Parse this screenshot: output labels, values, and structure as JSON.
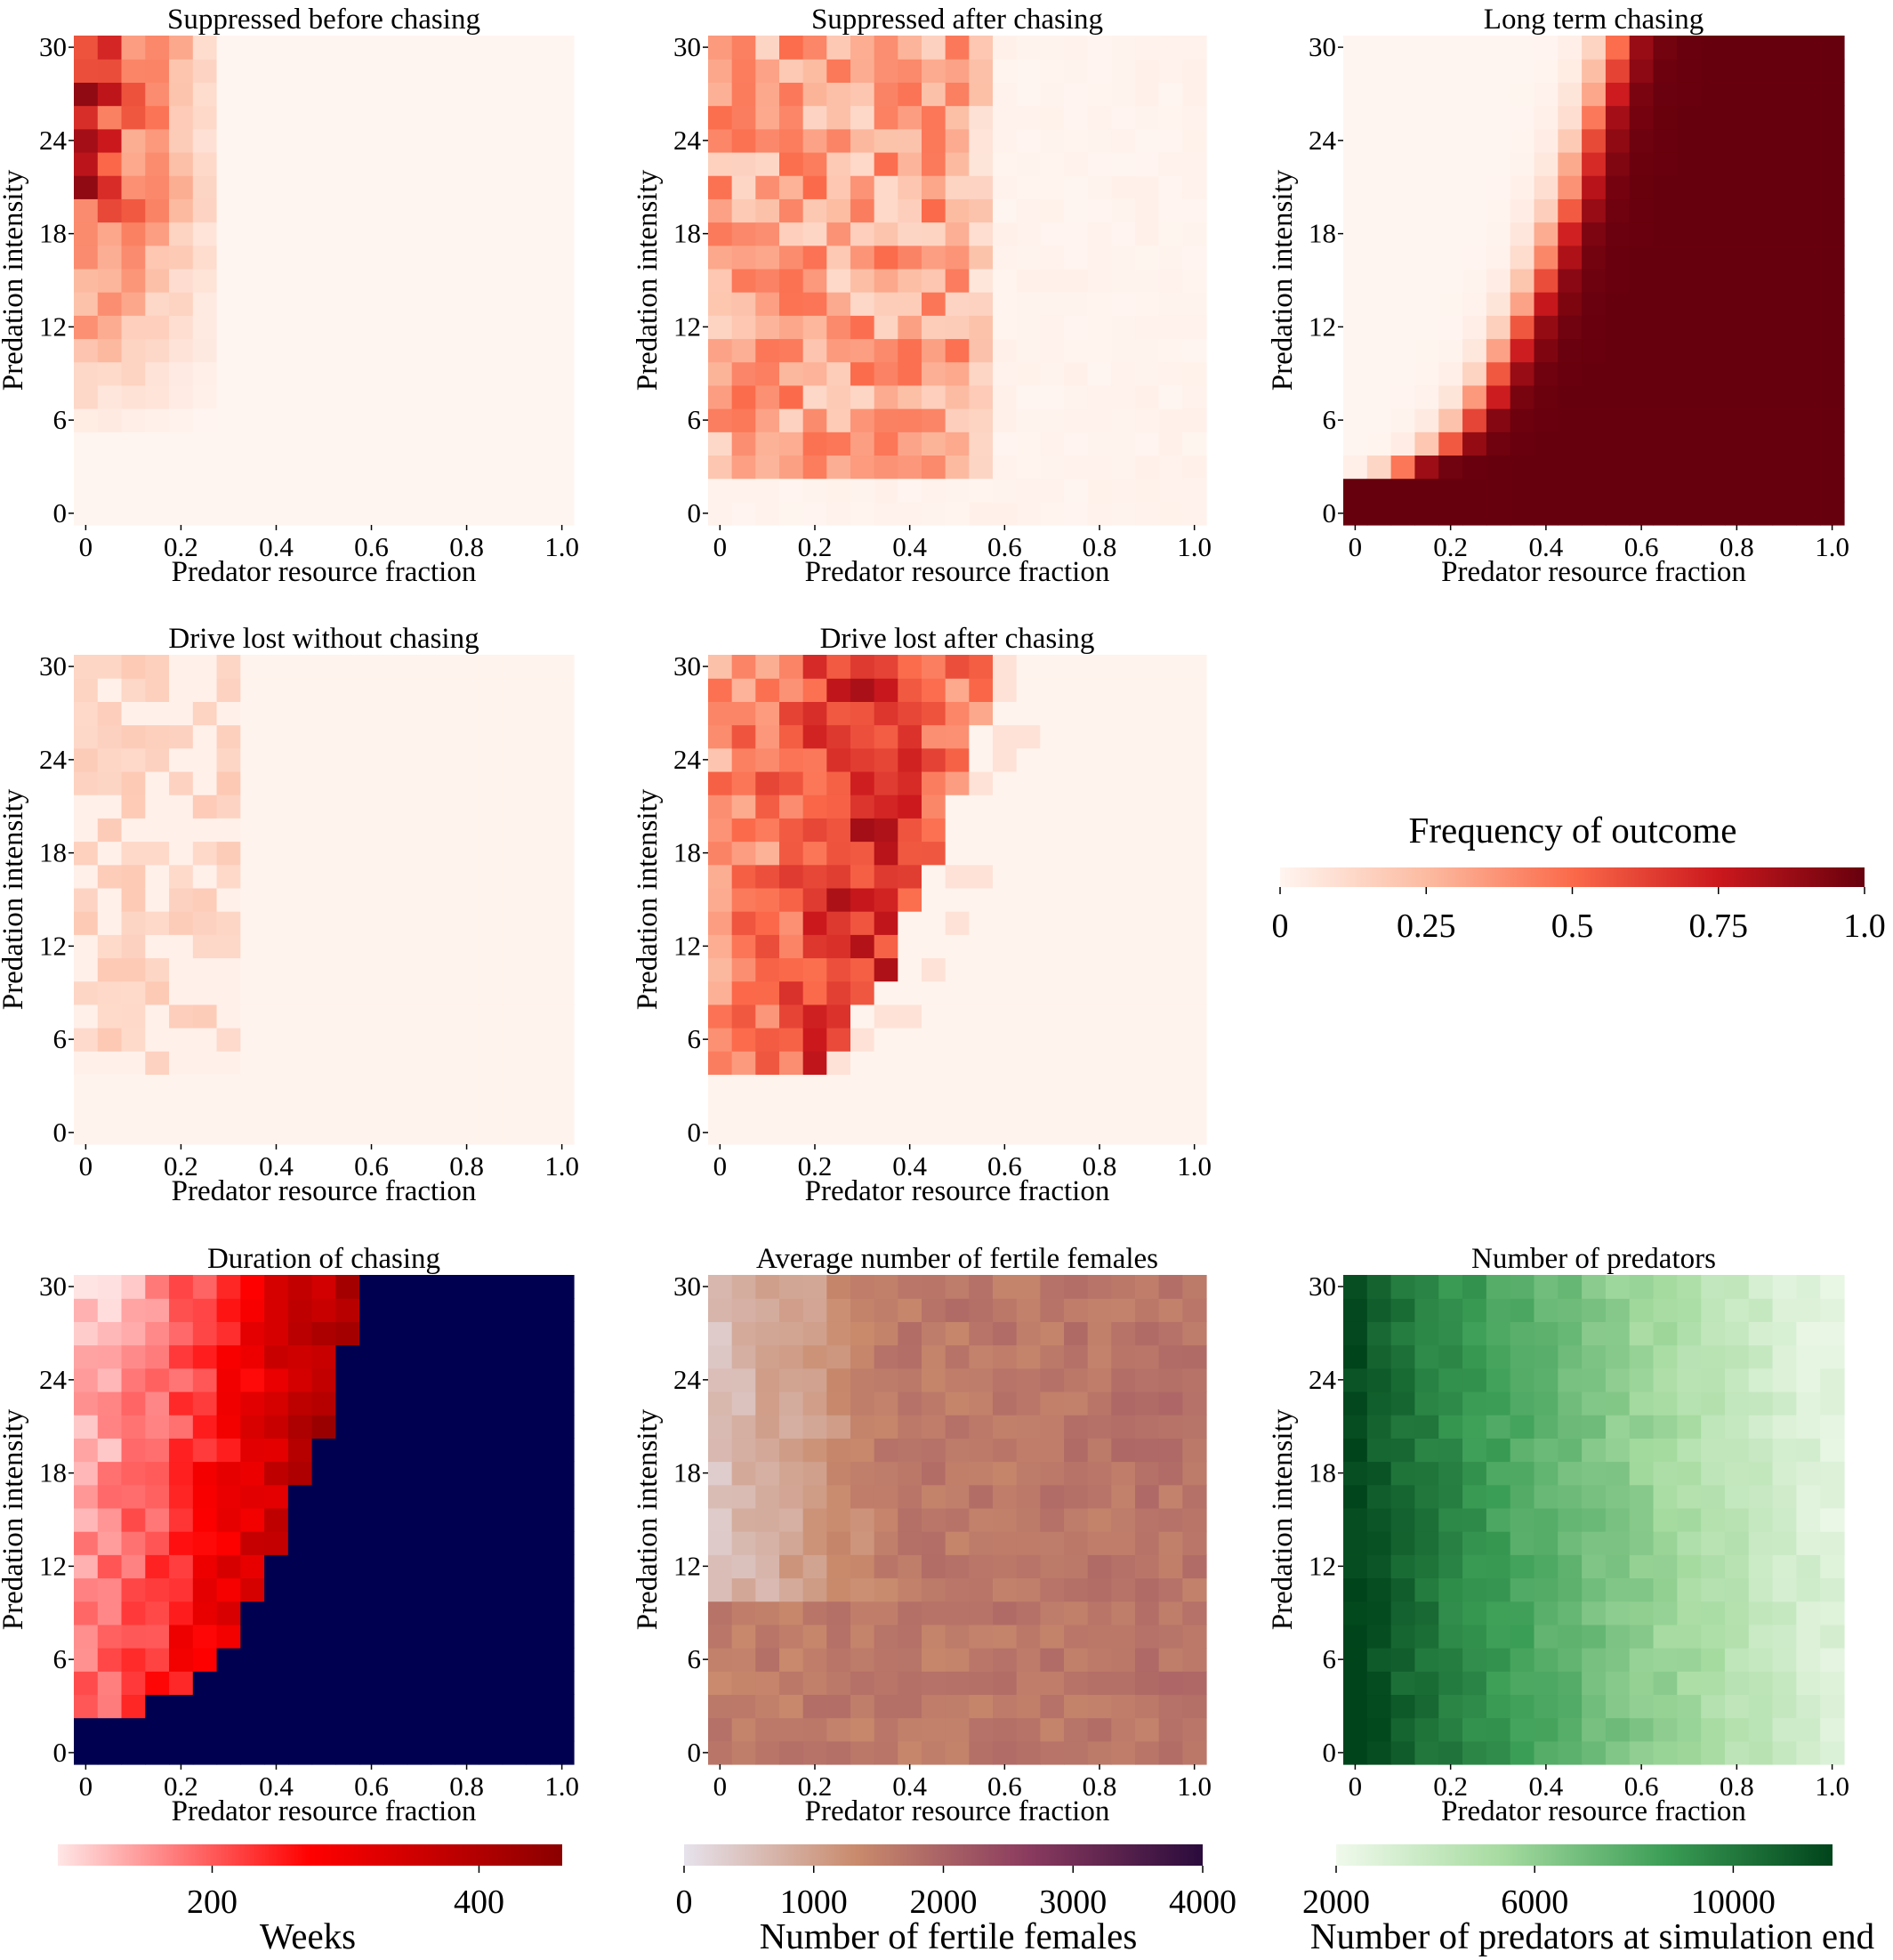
{
  "figure": {
    "xlabel": "Predator resource fraction",
    "ylabel": "Predation intensity",
    "xticks": [
      "0",
      "0.2",
      "0.4",
      "0.6",
      "0.8",
      "1.0"
    ],
    "yticks": [
      "0",
      "6",
      "12",
      "18",
      "24",
      "30"
    ]
  },
  "colorbars": {
    "frequency": {
      "label": "Frequency of outcome",
      "ticks": [
        "0",
        "0.25",
        "0.5",
        "0.75",
        "1.0"
      ],
      "colors": [
        "#fff5f0",
        "#fcbba1",
        "#fb6a4a",
        "#cb181d",
        "#67000d"
      ]
    },
    "weeks": {
      "label": "Weeks",
      "ticks": [
        "200",
        "400"
      ],
      "colors": [
        "#ffe6e6",
        "#ff0000",
        "#8b0000"
      ]
    },
    "fertile": {
      "label": "Number of fertile females",
      "ticks": [
        "0",
        "1000",
        "2000",
        "3000",
        "4000"
      ],
      "colors": [
        "#e6e2ec",
        "#c98a6c",
        "#8a3a5e",
        "#2a0b3c"
      ]
    },
    "predators": {
      "label": "Number of predators at simulation end",
      "ticks": [
        "2000",
        "6000",
        "10000"
      ],
      "colors": [
        "#f0f9ec",
        "#a6dba0",
        "#3a9d55",
        "#00441b"
      ]
    }
  },
  "chart_data": [
    {
      "type": "heatmap",
      "title": "Suppressed before chasing",
      "x_range": [
        0,
        1.0
      ],
      "y_range": [
        0,
        30
      ],
      "color_scale": "frequency",
      "value_range": [
        0,
        1
      ],
      "pattern": "values highest (~0.3-0.7) at low resource fraction (0-0.25) and intensity 6-30, near 0 elsewhere"
    },
    {
      "type": "heatmap",
      "title": "Suppressed after chasing",
      "x_range": [
        0,
        1.0
      ],
      "y_range": [
        0,
        30
      ],
      "color_scale": "frequency",
      "value_range": [
        0,
        1
      ],
      "pattern": "moderate values (~0.2-0.5) for resource fraction 0-0.55 and intensity 3-30"
    },
    {
      "type": "heatmap",
      "title": "Long term chasing",
      "x_range": [
        0,
        1.0
      ],
      "y_range": [
        0,
        30
      ],
      "color_scale": "frequency",
      "value_range": [
        0,
        1
      ],
      "pattern": "near 1.0 to the right of a boundary rising from (0, 3) to (0.55, 30); near 0 to the left"
    },
    {
      "type": "heatmap",
      "title": "Drive lost without chasing",
      "x_range": [
        0,
        1.0
      ],
      "y_range": [
        0,
        30
      ],
      "color_scale": "frequency",
      "value_range": [
        0,
        1
      ],
      "pattern": "low values (~0.05-0.15) at resource fraction 0-0.3, intensity 6-30"
    },
    {
      "type": "heatmap",
      "title": "Drive lost after chasing",
      "x_range": [
        0,
        1.0
      ],
      "y_range": [
        0,
        30
      ],
      "color_scale": "frequency",
      "value_range": [
        0,
        1
      ],
      "pattern": "values up to ~0.8 for resource fraction 0-0.55 and intensity 5-30, peak near fraction 0.3-0.4"
    },
    {
      "type": "heatmap",
      "title": "Duration of chasing",
      "x_range": [
        0,
        1.0
      ],
      "y_range": [
        0,
        30
      ],
      "color_scale": "weeks",
      "value_range": [
        50,
        500
      ],
      "pattern": "weeks increase with resource fraction and decrease with intensity; cells beyond the chasing boundary have no chasing (navy)"
    },
    {
      "type": "heatmap",
      "title": "Average number of fertile females",
      "x_range": [
        0,
        1.0
      ],
      "y_range": [
        0,
        30
      ],
      "color_scale": "fertile",
      "value_range": [
        0,
        4000
      ],
      "pattern": "about 1400-1800 across most of grid, lower (~300-900) at fraction 0-0.35 and intensity 10-30"
    },
    {
      "type": "heatmap",
      "title": "Number of predators",
      "x_range": [
        0,
        1.0
      ],
      "y_range": [
        0,
        30
      ],
      "color_scale": "predators",
      "value_range": [
        2000,
        12000
      ],
      "pattern": "decreases from ~12000 at fraction 0 to ~2000 at fraction 1.0; slightly higher at low intensity"
    }
  ]
}
